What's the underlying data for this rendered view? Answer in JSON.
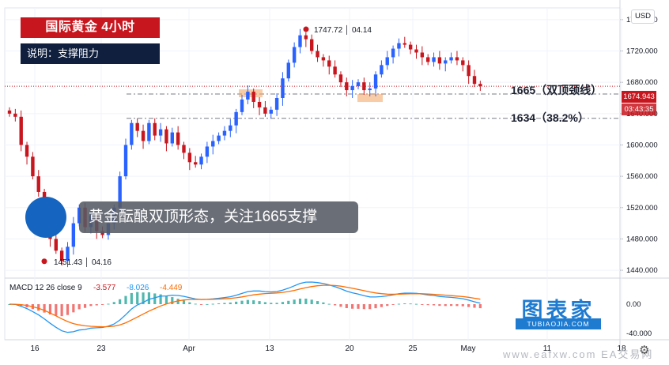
{
  "header": {
    "title": "国际黄金  4小时",
    "subtitle": "说明：支撑阻力"
  },
  "callout": "黄金酝酿双顶形态，关注1665支撑",
  "currency": "USD",
  "levels": [
    {
      "label": "1665（双顶颈线）",
      "value": 1665
    },
    {
      "label": "1634（38.2%）",
      "value": 1634
    }
  ],
  "current_price": {
    "value": "1674.943",
    "countdown": "03:43:35"
  },
  "annotations": {
    "high": "1747.72 │ 04.14",
    "low": "1451.43 │ 04.16"
  },
  "brand": {
    "name": "图表家",
    "url": "TUBIAOJIA.COM"
  },
  "watermark": "www.eafxw.com  EA交易网",
  "colors": {
    "up": "#2962ff",
    "down": "#c8161e",
    "macd": "#2196f3",
    "signal": "#ff6d00"
  },
  "chart_data": {
    "type": "candlestick",
    "price_axis": {
      "ticks": [
        1760,
        1720,
        1680,
        1640,
        1600,
        1560,
        1520,
        1480,
        1440
      ],
      "range": [
        1430,
        1775
      ]
    },
    "time_axis": {
      "ticks": [
        "16",
        "23",
        "Apr",
        "13",
        "20",
        "25",
        "May",
        "11",
        "18"
      ]
    },
    "series_close": [
      1640,
      1636,
      1600,
      1585,
      1560,
      1540,
      1510,
      1480,
      1465,
      1452,
      1470,
      1500,
      1520,
      1495,
      1510,
      1490,
      1485,
      1500,
      1520,
      1560,
      1600,
      1628,
      1618,
      1605,
      1628,
      1612,
      1620,
      1602,
      1616,
      1600,
      1590,
      1578,
      1575,
      1585,
      1598,
      1605,
      1612,
      1618,
      1625,
      1642,
      1658,
      1668,
      1655,
      1648,
      1640,
      1645,
      1660,
      1685,
      1705,
      1725,
      1740,
      1735,
      1720,
      1712,
      1708,
      1700,
      1690,
      1680,
      1670,
      1675,
      1680,
      1670,
      1672,
      1690,
      1702,
      1712,
      1723,
      1730,
      1728,
      1722,
      1718,
      1712,
      1706,
      1712,
      1704,
      1708,
      1712,
      1708,
      1702,
      1688,
      1678,
      1675
    ],
    "macd": {
      "label": "MACD 12 26 close 9",
      "values": [
        "-3.577",
        "-8.026",
        "-4.449"
      ],
      "axis_ticks": [
        "0.00",
        "-40.000"
      ]
    }
  }
}
